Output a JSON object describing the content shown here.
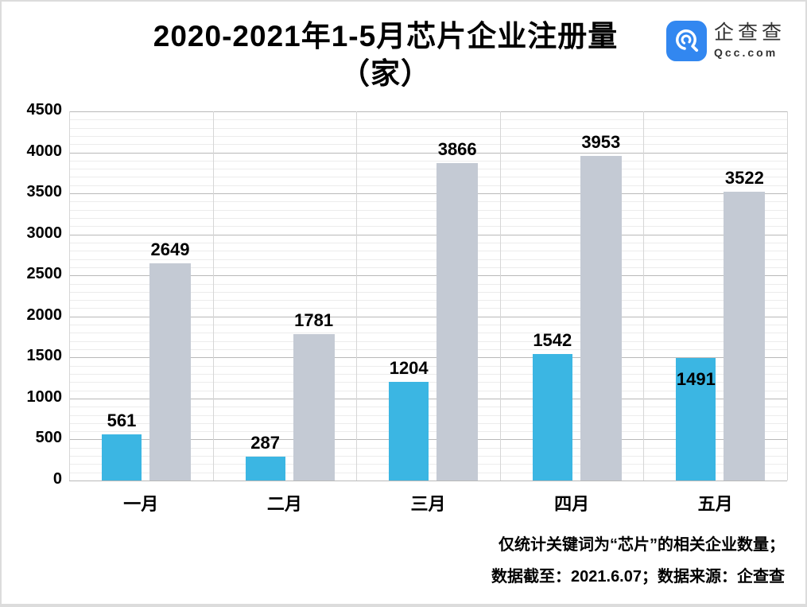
{
  "header": {
    "title_line1": "2020-2021年1-5月芯片企业注册量",
    "title_line2": "（家）",
    "logo": {
      "brand": "企查查",
      "domain": "Qcc.com",
      "badge_color": "#3287f0"
    }
  },
  "chart_data": {
    "type": "bar",
    "title": "2020-2021年1-5月芯片企业注册量（家）",
    "categories": [
      "一月",
      "二月",
      "三月",
      "四月",
      "五月"
    ],
    "series": [
      {
        "key": "cyan-series",
        "color": "#3bb6e3",
        "values": [
          561,
          287,
          1204,
          1542,
          1491
        ],
        "label_inside": [
          false,
          false,
          false,
          false,
          true
        ]
      },
      {
        "key": "gray-series",
        "color": "#c4cad4",
        "values": [
          2649,
          1781,
          3866,
          3953,
          3522
        ],
        "label_inside": [
          false,
          false,
          false,
          false,
          false
        ]
      }
    ],
    "value_labels": true,
    "legend": "none",
    "xlabel": "",
    "ylabel": "",
    "ylim": [
      0,
      4500
    ],
    "yticks": [
      0,
      500,
      1000,
      1500,
      2000,
      2500,
      3000,
      3500,
      4000,
      4500
    ],
    "minor_grid_step": 100,
    "grid": "major+minor horizontal, vertical category separators"
  },
  "footer": {
    "note_line1": "仅统计关键词为“芯片”的相关企业数量；",
    "note_line2": "数据截至：2021.6.07；数据来源：企查查"
  }
}
